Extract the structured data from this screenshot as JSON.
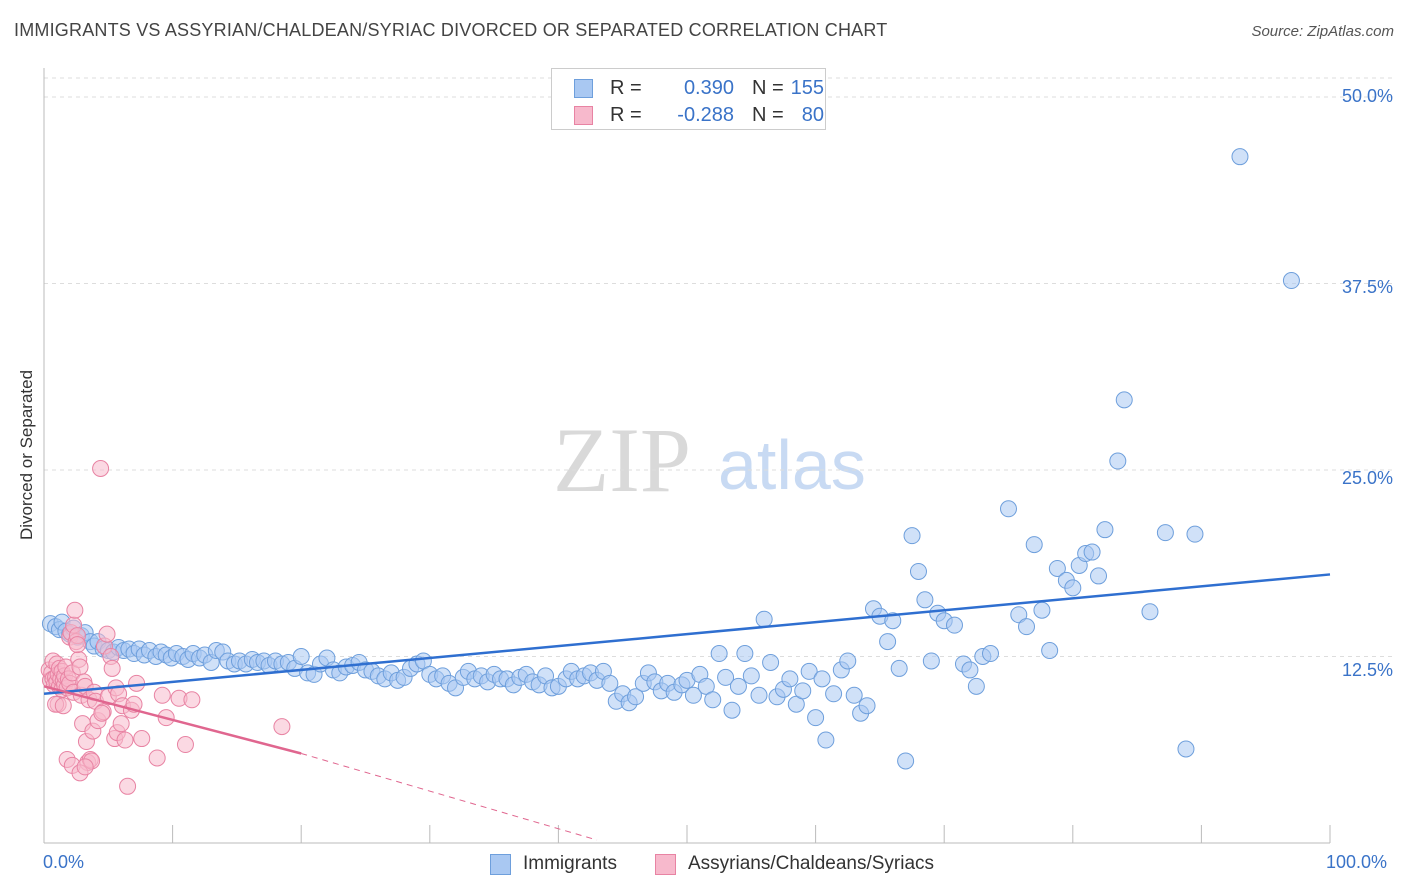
{
  "title": "IMMIGRANTS VS ASSYRIAN/CHALDEAN/SYRIAC DIVORCED OR SEPARATED CORRELATION CHART",
  "source": "Source: ZipAtlas.com",
  "watermark": {
    "zip": "ZIP",
    "atlas": "atlas"
  },
  "legend": [
    {
      "r_label": "R =",
      "r_value": "0.390",
      "n_label": "N =",
      "n_value": "155"
    },
    {
      "r_label": "R =",
      "r_value": "-0.288",
      "n_label": "N =",
      "n_value": "80"
    }
  ],
  "colors": {
    "blue_fill": "#a9c8f2",
    "blue_stroke": "#6e9fdc",
    "blue_line": "#2f6fd0",
    "pink_fill": "#f7b9cc",
    "pink_stroke": "#e883a3",
    "pink_line": "#e0668f",
    "axis_text": "#3a73c8",
    "grid": "#dddddd"
  },
  "chart_data": {
    "type": "scatter",
    "title": "IMMIGRANTS VS ASSYRIAN/CHALDEAN/SYRIAC DIVORCED OR SEPARATED CORRELATION CHART",
    "xlabel": "",
    "ylabel": "Divorced or Separated",
    "xlim": [
      0,
      100
    ],
    "ylim": [
      0,
      50
    ],
    "y_ticks": [
      "12.5%",
      "25.0%",
      "37.5%",
      "50.0%"
    ],
    "y_tick_values": [
      12.5,
      25.0,
      37.5,
      50.0
    ],
    "x_ticks": [
      "0.0%",
      "100.0%"
    ],
    "grid": true,
    "legend_position": "bottom",
    "series": [
      {
        "name": "Immigrants",
        "r": 0.39,
        "n": 155,
        "trend": {
          "x": [
            0,
            100
          ],
          "y": [
            10.0,
            18.0
          ]
        },
        "points": [
          [
            0.5,
            14.7
          ],
          [
            0.9,
            14.5
          ],
          [
            1.2,
            14.3
          ],
          [
            1.4,
            14.8
          ],
          [
            1.7,
            14.2
          ],
          [
            2,
            14.0
          ],
          [
            2.3,
            14.4
          ],
          [
            2.6,
            13.8
          ],
          [
            2.9,
            13.9
          ],
          [
            3.2,
            14.1
          ],
          [
            3.6,
            13.5
          ],
          [
            3.9,
            13.2
          ],
          [
            4.2,
            13.5
          ],
          [
            4.6,
            13.0
          ],
          [
            5,
            12.9
          ],
          [
            5.4,
            12.8
          ],
          [
            5.8,
            13.1
          ],
          [
            6.2,
            12.9
          ],
          [
            6.6,
            13.0
          ],
          [
            7,
            12.7
          ],
          [
            7.4,
            13.0
          ],
          [
            7.8,
            12.6
          ],
          [
            8.2,
            12.9
          ],
          [
            8.7,
            12.5
          ],
          [
            9.1,
            12.8
          ],
          [
            9.5,
            12.6
          ],
          [
            9.9,
            12.4
          ],
          [
            10.3,
            12.7
          ],
          [
            10.8,
            12.5
          ],
          [
            11.2,
            12.3
          ],
          [
            11.6,
            12.7
          ],
          [
            12.1,
            12.4
          ],
          [
            12.5,
            12.6
          ],
          [
            13,
            12.1
          ],
          [
            13.4,
            12.9
          ],
          [
            13.9,
            12.8
          ],
          [
            14.3,
            12.2
          ],
          [
            14.8,
            12.0
          ],
          [
            15.2,
            12.2
          ],
          [
            15.7,
            12.0
          ],
          [
            16.2,
            12.3
          ],
          [
            16.6,
            12.1
          ],
          [
            17.1,
            12.2
          ],
          [
            17.5,
            11.9
          ],
          [
            18,
            12.2
          ],
          [
            18.5,
            12.0
          ],
          [
            19,
            12.1
          ],
          [
            19.5,
            11.7
          ],
          [
            20,
            12.5
          ],
          [
            20.5,
            11.4
          ],
          [
            21,
            11.3
          ],
          [
            21.5,
            12.0
          ],
          [
            22,
            12.4
          ],
          [
            22.5,
            11.6
          ],
          [
            23,
            11.4
          ],
          [
            23.5,
            11.8
          ],
          [
            24,
            11.9
          ],
          [
            24.5,
            12.1
          ],
          [
            25,
            11.6
          ],
          [
            25.5,
            11.5
          ],
          [
            26,
            11.2
          ],
          [
            26.5,
            11.0
          ],
          [
            27,
            11.4
          ],
          [
            27.5,
            10.9
          ],
          [
            28,
            11.1
          ],
          [
            28.5,
            11.7
          ],
          [
            29,
            12.0
          ],
          [
            29.5,
            12.2
          ],
          [
            30,
            11.3
          ],
          [
            30.5,
            11.0
          ],
          [
            31,
            11.2
          ],
          [
            31.5,
            10.7
          ],
          [
            32,
            10.4
          ],
          [
            32.6,
            11.1
          ],
          [
            33,
            11.5
          ],
          [
            33.5,
            11.0
          ],
          [
            34,
            11.2
          ],
          [
            34.5,
            10.8
          ],
          [
            35,
            11.3
          ],
          [
            35.5,
            11.0
          ],
          [
            36,
            11.0
          ],
          [
            36.5,
            10.6
          ],
          [
            37,
            11.1
          ],
          [
            37.5,
            11.3
          ],
          [
            38,
            10.8
          ],
          [
            38.5,
            10.6
          ],
          [
            39,
            11.2
          ],
          [
            39.5,
            10.4
          ],
          [
            40,
            10.5
          ],
          [
            40.6,
            11.0
          ],
          [
            41,
            11.5
          ],
          [
            41.5,
            11.0
          ],
          [
            42,
            11.2
          ],
          [
            42.5,
            11.4
          ],
          [
            43,
            10.9
          ],
          [
            43.5,
            11.5
          ],
          [
            44,
            10.7
          ],
          [
            44.5,
            9.5
          ],
          [
            45,
            10.0
          ],
          [
            45.5,
            9.4
          ],
          [
            46,
            9.8
          ],
          [
            46.6,
            10.7
          ],
          [
            47,
            11.4
          ],
          [
            47.5,
            10.8
          ],
          [
            48,
            10.2
          ],
          [
            48.5,
            10.7
          ],
          [
            49,
            10.1
          ],
          [
            49.6,
            10.6
          ],
          [
            50,
            10.9
          ],
          [
            50.5,
            9.9
          ],
          [
            51,
            11.3
          ],
          [
            51.5,
            10.5
          ],
          [
            52,
            9.6
          ],
          [
            52.5,
            12.7
          ],
          [
            53,
            11.1
          ],
          [
            53.5,
            8.9
          ],
          [
            54,
            10.5
          ],
          [
            54.5,
            12.7
          ],
          [
            55,
            11.2
          ],
          [
            55.6,
            9.9
          ],
          [
            56,
            15.0
          ],
          [
            56.5,
            12.1
          ],
          [
            57,
            9.8
          ],
          [
            57.5,
            10.3
          ],
          [
            58,
            11.0
          ],
          [
            58.5,
            9.3
          ],
          [
            59,
            10.2
          ],
          [
            59.5,
            11.5
          ],
          [
            60,
            8.4
          ],
          [
            60.5,
            11.0
          ],
          [
            60.8,
            6.9
          ],
          [
            61.4,
            10.0
          ],
          [
            62,
            11.6
          ],
          [
            62.5,
            12.2
          ],
          [
            63,
            9.9
          ],
          [
            63.5,
            8.7
          ],
          [
            64,
            9.2
          ],
          [
            64.5,
            15.7
          ],
          [
            65,
            15.2
          ],
          [
            65.6,
            13.5
          ],
          [
            66,
            14.9
          ],
          [
            66.5,
            11.7
          ],
          [
            67,
            5.5
          ],
          [
            67.5,
            20.6
          ],
          [
            68,
            18.2
          ],
          [
            68.5,
            16.3
          ],
          [
            69,
            12.2
          ],
          [
            69.5,
            15.4
          ],
          [
            70,
            14.9
          ],
          [
            70.8,
            14.6
          ],
          [
            71.5,
            12.0
          ],
          [
            72,
            11.6
          ],
          [
            72.5,
            10.5
          ],
          [
            73,
            12.5
          ],
          [
            73.6,
            12.7
          ],
          [
            75,
            22.4
          ],
          [
            75.8,
            15.3
          ],
          [
            76.4,
            14.5
          ],
          [
            77,
            20.0
          ],
          [
            77.6,
            15.6
          ],
          [
            78.2,
            12.9
          ],
          [
            78.8,
            18.4
          ],
          [
            79.5,
            17.6
          ],
          [
            80,
            17.1
          ],
          [
            80.5,
            18.6
          ],
          [
            81,
            19.4
          ],
          [
            81.5,
            19.5
          ],
          [
            82,
            17.9
          ],
          [
            82.5,
            21.0
          ],
          [
            83.5,
            25.6
          ],
          [
            84,
            29.7
          ],
          [
            86,
            15.5
          ],
          [
            87.2,
            20.8
          ],
          [
            89.5,
            20.7
          ],
          [
            93,
            46.0
          ],
          [
            97,
            37.7
          ],
          [
            88.8,
            6.3
          ]
        ]
      },
      {
        "name": "Assyrians/Chaldeans/Syriacs",
        "r": -0.288,
        "n": 80,
        "trend": {
          "x": [
            0,
            20
          ],
          "y": [
            10.5,
            6.0
          ]
        },
        "trend_dashed": {
          "x": [
            20,
            43
          ],
          "y": [
            6.0,
            0.2
          ]
        },
        "points": [
          [
            0.4,
            11.6
          ],
          [
            0.5,
            10.9
          ],
          [
            0.6,
            11.4
          ],
          [
            0.7,
            12.2
          ],
          [
            0.7,
            11.0
          ],
          [
            0.8,
            10.6
          ],
          [
            0.9,
            11.1
          ],
          [
            1.0,
            10.8
          ],
          [
            1.0,
            12.0
          ],
          [
            1.1,
            11.3
          ],
          [
            1.2,
            10.5
          ],
          [
            1.2,
            11.7
          ],
          [
            1.3,
            11.0
          ],
          [
            1.4,
            10.3
          ],
          [
            1.4,
            11.5
          ],
          [
            1.5,
            10.9
          ],
          [
            1.6,
            10.6
          ],
          [
            1.6,
            11.2
          ],
          [
            1.7,
            11.8
          ],
          [
            1.8,
            10.4
          ],
          [
            1.9,
            11.0
          ],
          [
            2.0,
            10.7
          ],
          [
            2.0,
            13.8
          ],
          [
            2.1,
            14.1
          ],
          [
            2.2,
            11.4
          ],
          [
            2.3,
            10.1
          ],
          [
            2.3,
            14.6
          ],
          [
            2.4,
            15.6
          ],
          [
            2.5,
            13.5
          ],
          [
            2.6,
            13.9
          ],
          [
            2.7,
            12.3
          ],
          [
            2.8,
            11.8
          ],
          [
            2.9,
            9.9
          ],
          [
            3.0,
            8.0
          ],
          [
            3.1,
            10.8
          ],
          [
            3.2,
            10.5
          ],
          [
            3.3,
            6.8
          ],
          [
            3.4,
            5.4
          ],
          [
            3.5,
            9.6
          ],
          [
            3.6,
            5.6
          ],
          [
            3.8,
            7.5
          ],
          [
            3.9,
            10.1
          ],
          [
            4.0,
            9.5
          ],
          [
            4.2,
            8.2
          ],
          [
            4.4,
            25.1
          ],
          [
            4.6,
            8.8
          ],
          [
            4.7,
            13.2
          ],
          [
            4.9,
            14.0
          ],
          [
            5.0,
            9.8
          ],
          [
            5.2,
            12.5
          ],
          [
            5.3,
            11.7
          ],
          [
            5.5,
            7.0
          ],
          [
            5.6,
            10.4
          ],
          [
            5.7,
            7.4
          ],
          [
            5.8,
            10.0
          ],
          [
            6.0,
            8.0
          ],
          [
            6.1,
            9.2
          ],
          [
            6.3,
            6.9
          ],
          [
            6.5,
            3.8
          ],
          [
            6.8,
            8.9
          ],
          [
            7.0,
            9.3
          ],
          [
            7.2,
            10.7
          ],
          [
            7.6,
            7.0
          ],
          [
            8.8,
            5.7
          ],
          [
            9.2,
            9.9
          ],
          [
            9.5,
            8.4
          ],
          [
            10.5,
            9.7
          ],
          [
            11,
            6.6
          ],
          [
            11.5,
            9.6
          ],
          [
            18.5,
            7.8
          ],
          [
            2.6,
            13.3
          ],
          [
            3.7,
            5.5
          ],
          [
            1.1,
            9.3
          ],
          [
            0.9,
            9.3
          ],
          [
            1.5,
            9.2
          ],
          [
            1.8,
            5.6
          ],
          [
            2.2,
            5.2
          ],
          [
            2.8,
            4.7
          ],
          [
            3.2,
            5.1
          ],
          [
            4.5,
            8.7
          ]
        ]
      }
    ]
  },
  "bottom_legend": [
    {
      "label": "Immigrants"
    },
    {
      "label": "Assyrians/Chaldeans/Syriacs"
    }
  ]
}
